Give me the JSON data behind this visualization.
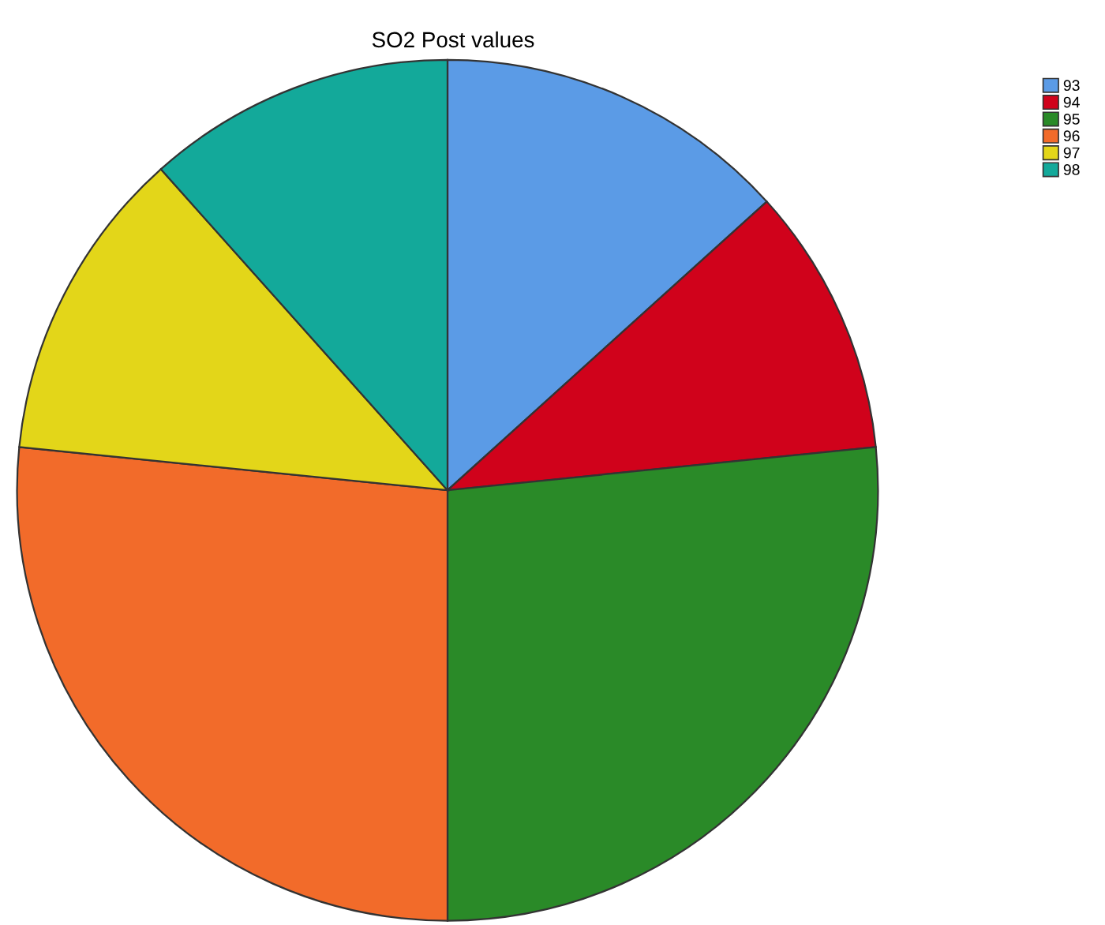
{
  "chart_data": {
    "type": "pie",
    "title": "SO2 Post values",
    "categories": [
      "93",
      "94",
      "95",
      "96",
      "97",
      "98"
    ],
    "values": [
      13.3,
      10.1,
      26.6,
      26.6,
      11.8,
      11.6
    ],
    "colors": [
      "#5b9be6",
      "#d0021b",
      "#2a8a28",
      "#f26b2a",
      "#e3d619",
      "#13a99a"
    ],
    "legend": "top right"
  }
}
